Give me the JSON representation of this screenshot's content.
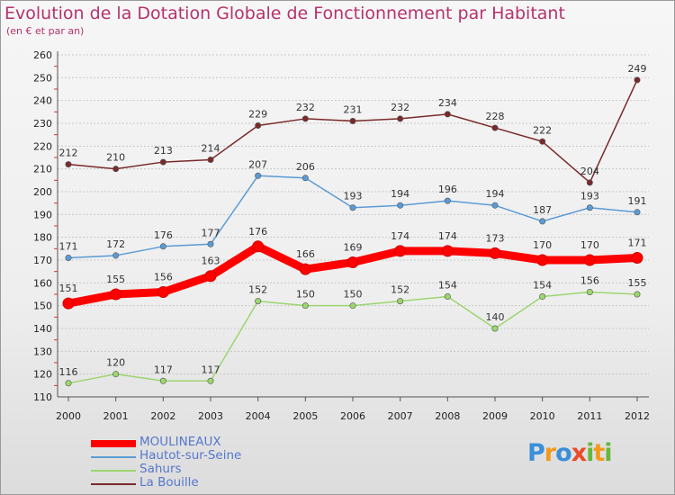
{
  "title": "Evolution de la Dotation Globale de Fonctionnement par Habitant",
  "subtitle": "(en € et par an)",
  "logo": {
    "letters": [
      {
        "char": "P",
        "color": "#3a8fd8"
      },
      {
        "char": "r",
        "color": "#f29a1f"
      },
      {
        "char": "o",
        "color": "#3a8fd8"
      },
      {
        "char": "x",
        "color": "#e94b2b"
      },
      {
        "char": "i",
        "color": "#66b83b"
      },
      {
        "char": "t",
        "color": "#f29a1f"
      },
      {
        "char": "i",
        "color": "#66b83b"
      }
    ]
  },
  "chart_data": {
    "type": "line",
    "x": [
      "2000",
      "2001",
      "2002",
      "2003",
      "2004",
      "2005",
      "2006",
      "2007",
      "2008",
      "2009",
      "2010",
      "2011",
      "2012"
    ],
    "ylim": [
      110,
      260
    ],
    "yticks": [
      110,
      120,
      130,
      140,
      150,
      160,
      170,
      180,
      190,
      200,
      210,
      220,
      230,
      240,
      250,
      260
    ],
    "legend_position": "bottom-left",
    "grid": true,
    "series": [
      {
        "name": "MOULINEAUX",
        "color": "#ff0000",
        "values": [
          151,
          155,
          156,
          163,
          176,
          166,
          169,
          174,
          174,
          173,
          170,
          170,
          171
        ]
      },
      {
        "name": "Hautot-sur-Seine",
        "color": "#5b9bd5",
        "values": [
          171,
          172,
          176,
          177,
          207,
          206,
          193,
          194,
          196,
          194,
          187,
          193,
          191
        ]
      },
      {
        "name": "Sahurs",
        "color": "#9cd66f",
        "values": [
          116,
          120,
          117,
          117,
          152,
          150,
          150,
          152,
          154,
          140,
          154,
          156,
          155
        ]
      },
      {
        "name": "La Bouille",
        "color": "#7a2a2a",
        "values": [
          212,
          210,
          213,
          214,
          229,
          232,
          231,
          232,
          234,
          228,
          222,
          204,
          249
        ]
      }
    ]
  }
}
